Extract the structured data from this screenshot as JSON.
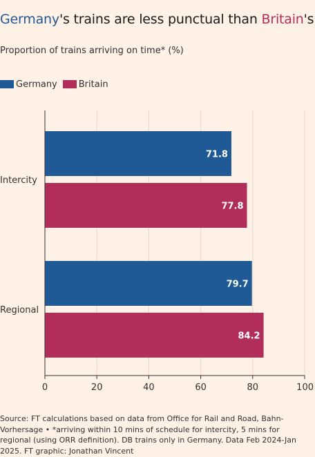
{
  "title": {
    "part1": "Germany",
    "part2": "'s trains are less punctual than ",
    "part3": "Britain",
    "part4": "'s"
  },
  "subtitle": "Proportion of trains arriving on time* (%)",
  "source_note": "Source: FT calculations based on data from Office for Rail and Road, Bahn-Vorhersage • *arriving within 10 mins of schedule for intercity, 5 mins for regional (using ORR definition). DB trains only in Germany. Data Feb 2024-Jan 2025. FT graphic: Jonathan Vincent",
  "colors": {
    "germany": "#1f5a96",
    "britain": "#b22e5a",
    "background": "#fff1e5",
    "grid": "#e6d9ce",
    "axis": "#33302e"
  },
  "chart_data": {
    "type": "bar",
    "orientation": "horizontal",
    "categories": [
      "Intercity",
      "Regional"
    ],
    "series": [
      {
        "name": "Germany",
        "values": [
          71.8,
          79.7
        ]
      },
      {
        "name": "Britain",
        "values": [
          77.8,
          84.2
        ]
      }
    ],
    "xlim": [
      0,
      100
    ],
    "xticks": [
      0,
      20,
      40,
      60,
      80,
      100
    ],
    "grid": true,
    "legend_position": "top-left",
    "data_labels": true
  }
}
